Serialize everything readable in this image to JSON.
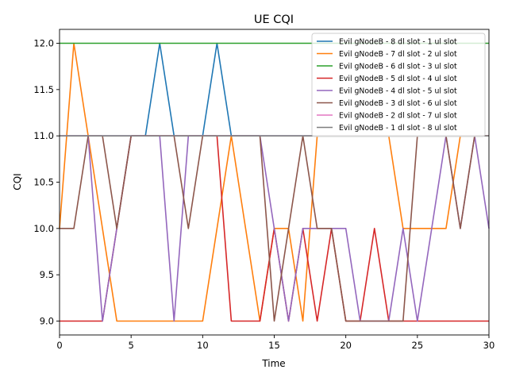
{
  "chart_data": {
    "type": "line",
    "title": "UE CQI",
    "xlabel": "Time",
    "ylabel": "CQI",
    "xlim": [
      0,
      30
    ],
    "ylim": [
      8.85,
      12.15
    ],
    "xticks": [
      0,
      5,
      10,
      15,
      20,
      25,
      30
    ],
    "yticks": [
      9.0,
      9.5,
      10.0,
      10.5,
      11.0,
      11.5,
      12.0
    ],
    "xtick_labels": [
      "0",
      "5",
      "10",
      "15",
      "20",
      "25",
      "30"
    ],
    "ytick_labels": [
      "9.0",
      "9.5",
      "10.0",
      "10.5",
      "11.0",
      "11.5",
      "12.0"
    ],
    "grid": false,
    "legend_position": "upper-right",
    "x": [
      0,
      1,
      2,
      3,
      4,
      5,
      6,
      7,
      8,
      9,
      10,
      11,
      12,
      13,
      14,
      15,
      16,
      17,
      18,
      19,
      20,
      21,
      22,
      23,
      24,
      25,
      26,
      27,
      28,
      29,
      30
    ],
    "series": [
      {
        "name": "Evil gNodeB - 8 dl slot - 1 ul slot",
        "color": "#1f77b4",
        "values": [
          11,
          11,
          11,
          11,
          11,
          11,
          11,
          12,
          11,
          11,
          11,
          12,
          11,
          11,
          11,
          11,
          11,
          11,
          11,
          11,
          11,
          11,
          11,
          11,
          11,
          11,
          11,
          11,
          11,
          11,
          11
        ]
      },
      {
        "name": "Evil gNodeB - 7 dl slot - 2 ul slot",
        "color": "#ff7f0e",
        "values": [
          10,
          12,
          11,
          10,
          9,
          9,
          9,
          9,
          9,
          9,
          9,
          10,
          11,
          10,
          9,
          10,
          10,
          9,
          11,
          11,
          11,
          11,
          11,
          11,
          10,
          10,
          10,
          10,
          11,
          11,
          11
        ]
      },
      {
        "name": "Evil gNodeB - 6 dl slot - 3 ul slot",
        "color": "#2ca02c",
        "values": [
          12,
          12,
          12,
          12,
          12,
          12,
          12,
          12,
          12,
          12,
          12,
          12,
          12,
          12,
          12,
          12,
          12,
          12,
          12,
          12,
          12,
          12,
          12,
          12,
          12,
          12,
          12,
          12,
          12,
          12,
          12
        ]
      },
      {
        "name": "Evil gNodeB - 5 dl slot - 4 ul slot",
        "color": "#d62728",
        "values": [
          9,
          9,
          9,
          9,
          10,
          11,
          11,
          11,
          11,
          11,
          11,
          11,
          9,
          9,
          9,
          10,
          9,
          10,
          9,
          10,
          9,
          9,
          10,
          9,
          9,
          9,
          9,
          9,
          9,
          9,
          9
        ]
      },
      {
        "name": "Evil gNodeB - 4 dl slot - 5 ul slot",
        "color": "#9467bd",
        "values": [
          11,
          11,
          11,
          9,
          10,
          11,
          11,
          11,
          9,
          11,
          11,
          11,
          11,
          11,
          11,
          10,
          9,
          10,
          10,
          10,
          10,
          9,
          9,
          9,
          10,
          9,
          10,
          11,
          10,
          11,
          10
        ]
      },
      {
        "name": "Evil gNodeB - 3 dl slot - 6 ul slot",
        "color": "#8c564b",
        "values": [
          10,
          10,
          11,
          11,
          10,
          11,
          11,
          11,
          11,
          10,
          11,
          11,
          11,
          11,
          11,
          9,
          10,
          11,
          10,
          10,
          9,
          9,
          9,
          9,
          9,
          11,
          11,
          11,
          10,
          11,
          11
        ]
      },
      {
        "name": "Evil gNodeB - 2 dl slot - 7 ul slot",
        "color": "#e377c2",
        "values": [
          11,
          11,
          11,
          11,
          11,
          11,
          11,
          11,
          11,
          11,
          11,
          11,
          11,
          11,
          11,
          11,
          11,
          11,
          11,
          11,
          11,
          11,
          11,
          11,
          11,
          11,
          11,
          11,
          11,
          11,
          11
        ]
      },
      {
        "name": "Evil gNodeB - 1 dl slot - 8 ul slot",
        "color": "#7f7f7f",
        "values": [
          11,
          11,
          11,
          11,
          11,
          11,
          11,
          11,
          11,
          11,
          11,
          11,
          11,
          11,
          11,
          11,
          11,
          11,
          11,
          11,
          11,
          11,
          11,
          11,
          11,
          11,
          11,
          11,
          11,
          11,
          11
        ]
      }
    ]
  }
}
